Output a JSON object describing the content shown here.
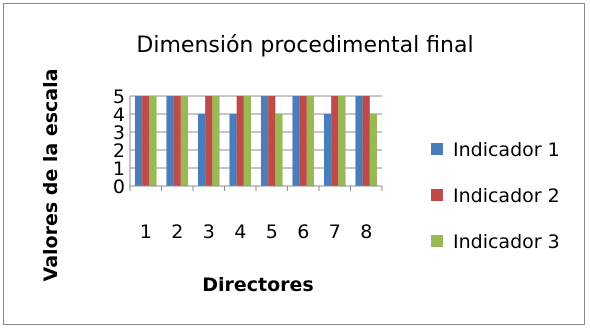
{
  "chart_data": {
    "type": "bar",
    "title": "Dimensión procedimental final",
    "xlabel": "Directores",
    "ylabel": "Valores de la escala",
    "categories": [
      "1",
      "2",
      "3",
      "4",
      "5",
      "6",
      "7",
      "8"
    ],
    "series": [
      {
        "name": "Indicador 1",
        "values": [
          5,
          5,
          4,
          4,
          5,
          5,
          4,
          5
        ],
        "color": "#4a7ebb"
      },
      {
        "name": "Indicador 2",
        "values": [
          5,
          5,
          5,
          5,
          5,
          5,
          5,
          5
        ],
        "color": "#be4b48"
      },
      {
        "name": "Indicador 3",
        "values": [
          5,
          5,
          5,
          5,
          4,
          5,
          5,
          4
        ],
        "color": "#98b954"
      }
    ],
    "yticks": [
      "0",
      "1",
      "2",
      "3",
      "4",
      "5"
    ],
    "ylim": [
      0,
      5
    ],
    "grid": true,
    "legend": "right"
  }
}
